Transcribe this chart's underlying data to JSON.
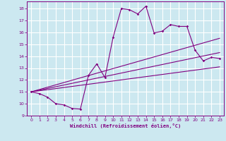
{
  "xlabel": "Windchill (Refroidissement éolien,°C)",
  "background_color": "#cce8f0",
  "grid_color": "#ffffff",
  "line_color": "#800080",
  "xlim": [
    -0.5,
    23.5
  ],
  "ylim": [
    9,
    18.6
  ],
  "xticks": [
    0,
    1,
    2,
    3,
    4,
    5,
    6,
    7,
    8,
    9,
    10,
    11,
    12,
    13,
    14,
    15,
    16,
    17,
    18,
    19,
    20,
    21,
    22,
    23
  ],
  "yticks": [
    9,
    10,
    11,
    12,
    13,
    14,
    15,
    16,
    17,
    18
  ],
  "series1": [
    [
      0,
      11.0
    ],
    [
      1,
      10.85
    ],
    [
      2,
      10.55
    ],
    [
      3,
      10.0
    ],
    [
      4,
      9.9
    ],
    [
      5,
      9.6
    ],
    [
      6,
      9.55
    ],
    [
      7,
      12.4
    ],
    [
      8,
      13.35
    ],
    [
      9,
      12.2
    ],
    [
      10,
      15.6
    ],
    [
      11,
      18.0
    ],
    [
      12,
      17.9
    ],
    [
      13,
      17.55
    ],
    [
      14,
      18.2
    ],
    [
      15,
      15.95
    ],
    [
      16,
      16.1
    ],
    [
      17,
      16.65
    ],
    [
      18,
      16.5
    ],
    [
      19,
      16.5
    ],
    [
      20,
      14.5
    ],
    [
      21,
      13.6
    ],
    [
      22,
      13.9
    ],
    [
      23,
      13.8
    ]
  ],
  "line_upper": [
    [
      0,
      11.0
    ],
    [
      23,
      15.5
    ]
  ],
  "line_mid": [
    [
      0,
      11.0
    ],
    [
      23,
      14.3
    ]
  ],
  "line_lower": [
    [
      0,
      11.0
    ],
    [
      23,
      13.1
    ]
  ]
}
